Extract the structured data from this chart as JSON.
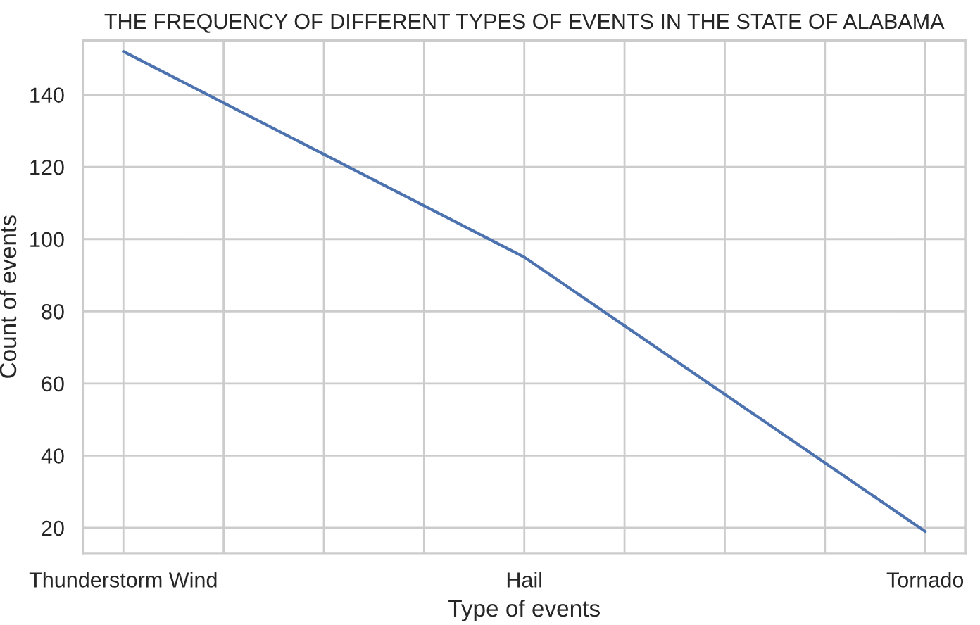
{
  "chart_data": {
    "type": "line",
    "title": "THE FREQUENCY OF DIFFERENT TYPES OF EVENTS IN THE STATE OF ALABAMA",
    "xlabel": "Type of events",
    "ylabel": "Count of events",
    "categories": [
      "Thunderstorm Wind",
      "Hail",
      "Tornado"
    ],
    "series": [
      {
        "color": "#4c72b0",
        "values": [
          152,
          95,
          19
        ]
      }
    ],
    "ylim": [
      13,
      155
    ],
    "yticks": [
      20,
      40,
      60,
      80,
      100,
      120,
      140
    ],
    "grid": true,
    "marker": "none",
    "line_style": "solid"
  }
}
